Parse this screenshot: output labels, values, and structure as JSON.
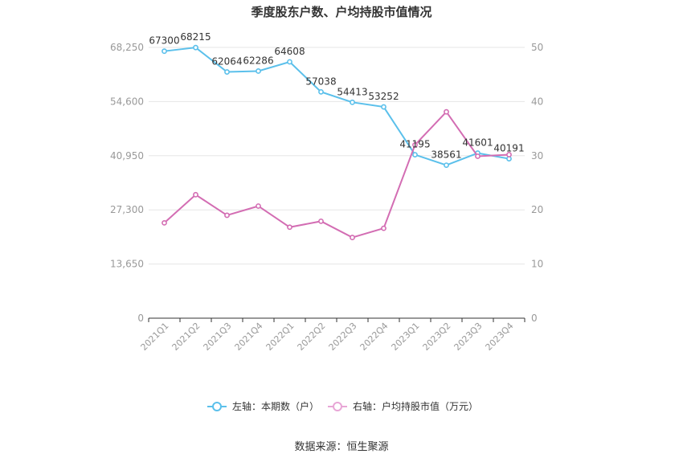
{
  "chart_data": {
    "type": "line",
    "title": "季度股东户数、户均持股市值情况",
    "categories": [
      "2021Q1",
      "2021Q2",
      "2021Q3",
      "2021Q4",
      "2022Q1",
      "2022Q2",
      "2022Q3",
      "2022Q4",
      "2023Q1",
      "2023Q2",
      "2023Q3",
      "2023Q4"
    ],
    "series": [
      {
        "name": "左轴：本期数（户）",
        "axis": "left",
        "color": "#5bc0eb",
        "values": [
          67300,
          68215,
          62064,
          62286,
          64608,
          57038,
          54413,
          53252,
          41195,
          38561,
          41601,
          40191
        ],
        "labels": [
          "67300",
          "68215",
          "62064",
          "62286",
          "64608",
          "57038",
          "54413",
          "53252",
          "41195",
          "38561",
          "41601",
          "40191"
        ]
      },
      {
        "name": "右轴：户均持股市值（万元）",
        "axis": "right",
        "color": "#d36db3",
        "values": [
          17.6,
          22.8,
          19.0,
          20.7,
          16.8,
          17.9,
          14.9,
          16.6,
          32.0,
          38.1,
          29.9,
          30.2
        ]
      }
    ],
    "left_axis": {
      "ylim": [
        0,
        68250
      ],
      "ticks": [
        "0",
        "13,650",
        "27,300",
        "40,950",
        "54,600",
        "68,250"
      ]
    },
    "right_axis": {
      "ylim": [
        0,
        50
      ],
      "ticks": [
        "0",
        "10",
        "20",
        "30",
        "40",
        "50"
      ]
    },
    "grid": true,
    "legend": "bottom-center",
    "source": "数据来源：恒生聚源"
  }
}
